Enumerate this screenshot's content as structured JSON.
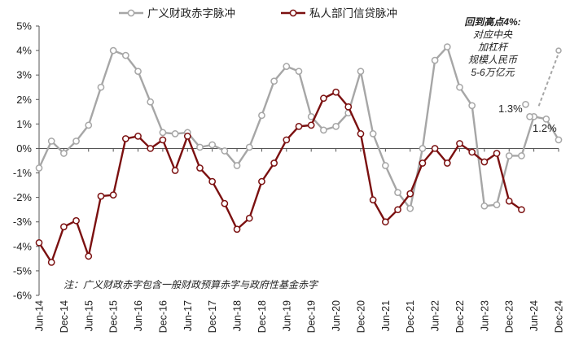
{
  "chart_data": {
    "type": "line",
    "y_ticks": [
      "5%",
      "4%",
      "3%",
      "2%",
      "1%",
      "0%",
      "-1%",
      "-2%",
      "-3%",
      "-4%",
      "-5%",
      "-6%"
    ],
    "ylim": [
      -6,
      5
    ],
    "x_ticks": [
      "Jun-14",
      "Dec-14",
      "Jun-15",
      "Dec-15",
      "Jun-16",
      "Dec-16",
      "Jun-17",
      "Dec-17",
      "Jun-18",
      "Dec-18",
      "Jun-19",
      "Dec-19",
      "Jun-20",
      "Dec-20",
      "Jun-21",
      "Dec-21",
      "Jun-22",
      "Dec-22",
      "Jun-23",
      "Dec-23",
      "Jun-24",
      "Dec-24"
    ],
    "x_start": "2014-06",
    "x_end": "2024-12",
    "grid": false,
    "legend_position": "top",
    "series": [
      {
        "name": "广义财政赤字脉冲",
        "color": "#a6a6a6",
        "points": [
          [
            "2014-06",
            -0.8
          ],
          [
            "2014-09",
            0.3
          ],
          [
            "2014-12",
            -0.2
          ],
          [
            "2015-03",
            0.3
          ],
          [
            "2015-06",
            0.95
          ],
          [
            "2015-09",
            2.5
          ],
          [
            "2015-12",
            4.0
          ],
          [
            "2016-03",
            3.8
          ],
          [
            "2016-06",
            3.15
          ],
          [
            "2016-09",
            1.9
          ],
          [
            "2016-12",
            0.65
          ],
          [
            "2017-03",
            0.6
          ],
          [
            "2017-06",
            0.65
          ],
          [
            "2017-09",
            0.05
          ],
          [
            "2017-12",
            0.15
          ],
          [
            "2018-03",
            -0.1
          ],
          [
            "2018-06",
            -0.7
          ],
          [
            "2018-09",
            0.05
          ],
          [
            "2018-12",
            1.35
          ],
          [
            "2019-03",
            2.75
          ],
          [
            "2019-06",
            3.35
          ],
          [
            "2019-09",
            3.15
          ],
          [
            "2019-12",
            1.3
          ],
          [
            "2020-03",
            0.75
          ],
          [
            "2020-06",
            0.9
          ],
          [
            "2020-09",
            1.45
          ],
          [
            "2020-12",
            3.15
          ],
          [
            "2021-03",
            0.6
          ],
          [
            "2021-06",
            -0.7
          ],
          [
            "2021-09",
            -1.8
          ],
          [
            "2021-12",
            -2.45
          ],
          [
            "2022-03",
            0.0
          ],
          [
            "2022-06",
            3.6
          ],
          [
            "2022-09",
            4.15
          ],
          [
            "2022-12",
            2.5
          ],
          [
            "2023-03",
            1.75
          ],
          [
            "2023-06",
            -2.35
          ],
          [
            "2023-09",
            -2.3
          ],
          [
            "2023-12",
            -0.3
          ],
          [
            "2024-03",
            -0.3
          ],
          [
            "2024-06",
            1.3
          ],
          [
            "2024-09",
            1.2
          ],
          [
            "2024-12",
            0.35
          ]
        ],
        "extra_points": [
          [
            "2024-04",
            1.8
          ],
          [
            "2024-05",
            1.3
          ]
        ]
      },
      {
        "name": "私人部门信贷脉冲",
        "color": "#7b1010",
        "points": [
          [
            "2014-06",
            -3.85
          ],
          [
            "2014-09",
            -4.65
          ],
          [
            "2014-12",
            -3.2
          ],
          [
            "2015-03",
            -2.95
          ],
          [
            "2015-06",
            -4.4
          ],
          [
            "2015-09",
            -1.95
          ],
          [
            "2015-12",
            -1.9
          ],
          [
            "2016-03",
            0.4
          ],
          [
            "2016-06",
            0.5
          ],
          [
            "2016-09",
            0.0
          ],
          [
            "2016-12",
            0.35
          ],
          [
            "2017-03",
            -0.9
          ],
          [
            "2017-06",
            0.5
          ],
          [
            "2017-09",
            -0.8
          ],
          [
            "2017-12",
            -1.35
          ],
          [
            "2018-03",
            -2.25
          ],
          [
            "2018-06",
            -3.3
          ],
          [
            "2018-09",
            -2.85
          ],
          [
            "2018-12",
            -1.35
          ],
          [
            "2019-03",
            -0.6
          ],
          [
            "2019-06",
            0.35
          ],
          [
            "2019-09",
            0.9
          ],
          [
            "2019-12",
            0.95
          ],
          [
            "2020-03",
            2.05
          ],
          [
            "2020-06",
            2.3
          ],
          [
            "2020-09",
            1.7
          ],
          [
            "2020-12",
            0.6
          ],
          [
            "2021-03",
            -2.1
          ],
          [
            "2021-06",
            -3.0
          ],
          [
            "2021-09",
            -2.5
          ],
          [
            "2021-12",
            -1.85
          ],
          [
            "2022-03",
            -0.6
          ],
          [
            "2022-06",
            0.0
          ],
          [
            "2022-09",
            -0.6
          ],
          [
            "2022-12",
            0.2
          ],
          [
            "2023-03",
            -0.15
          ],
          [
            "2023-06",
            -0.55
          ],
          [
            "2023-09",
            -0.2
          ],
          [
            "2023-12",
            -2.15
          ],
          [
            "2024-03",
            -2.5
          ]
        ]
      }
    ],
    "projection": {
      "from": [
        "2024-06",
        1.6
      ],
      "to": [
        "2024-12",
        4.0
      ],
      "style": "dashed",
      "color": "#a6a6a6",
      "label_lines": [
        "回到高点4%:",
        "对应中央",
        "加杠杆",
        "规模人民币",
        "5-6万亿元"
      ]
    },
    "callouts": [
      {
        "text": "1.3%",
        "x": "2024-04",
        "y": 1.3
      },
      {
        "text": "1.2%",
        "x": "2024-10",
        "y": 1.2
      }
    ],
    "note": "注：广义财政赤字包含一般财政预算赤字与政府性基金赤字"
  }
}
